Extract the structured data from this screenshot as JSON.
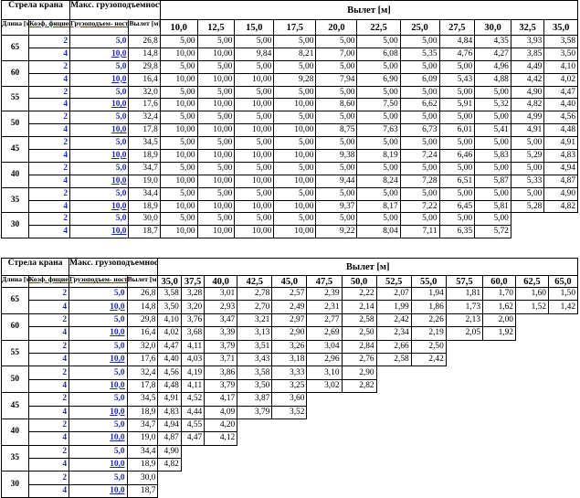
{
  "table1": {
    "header": {
      "boom": "Стрела крана",
      "max_load": "Макс. грузоподъемность",
      "reach_title": "Вылет [м]",
      "length": "Длина [м]",
      "coef": "Коэф. фициент",
      "load_cap": "Грузоподъем- ность [т]",
      "reach_col": "Вылет [м]",
      "reach_values": [
        "10,0",
        "12,5",
        "15,0",
        "17,5",
        "20,0",
        "22,5",
        "25,0",
        "27,5",
        "30,0",
        "32,5",
        "35,0"
      ]
    },
    "groups": [
      {
        "length": "65",
        "rows": [
          {
            "coef": "2",
            "load": "5,0",
            "reach": "26,8",
            "vals": [
              "5,00",
              "5,00",
              "5,00",
              "5,00",
              "5,00",
              "5,00",
              "5,00",
              "4,84",
              "4,35",
              "3,93",
              "3,58"
            ]
          },
          {
            "coef": "4",
            "load": "10,0",
            "reach": "14,8",
            "vals": [
              "10,00",
              "10,00",
              "9,84",
              "8,21",
              "7,00",
              "6,08",
              "5,35",
              "4,76",
              "4,27",
              "3,85",
              "3,50"
            ]
          }
        ]
      },
      {
        "length": "60",
        "rows": [
          {
            "coef": "2",
            "load": "5,0",
            "reach": "29,8",
            "vals": [
              "5,00",
              "5,00",
              "5,00",
              "5,00",
              "5,00",
              "5,00",
              "5,00",
              "5,00",
              "4,96",
              "4,49",
              "4,10"
            ]
          },
          {
            "coef": "4",
            "load": "10,0",
            "reach": "16,4",
            "vals": [
              "10,00",
              "10,00",
              "10,00",
              "9,28",
              "7,94",
              "6,90",
              "6,09",
              "5,43",
              "4,88",
              "4,42",
              "4,02"
            ]
          }
        ]
      },
      {
        "length": "55",
        "rows": [
          {
            "coef": "2",
            "load": "5,0",
            "reach": "32,0",
            "vals": [
              "5,00",
              "5,00",
              "5,00",
              "5,00",
              "5,00",
              "5,00",
              "5,00",
              "5,00",
              "5,00",
              "4,90",
              "4,47"
            ]
          },
          {
            "coef": "4",
            "load": "10,0",
            "reach": "17,6",
            "vals": [
              "10,00",
              "10,00",
              "10,00",
              "10,00",
              "8,60",
              "7,50",
              "6,62",
              "5,91",
              "5,32",
              "4,82",
              "4,40"
            ]
          }
        ]
      },
      {
        "length": "50",
        "rows": [
          {
            "coef": "2",
            "load": "5,0",
            "reach": "32,4",
            "vals": [
              "5,00",
              "5,00",
              "5,00",
              "5,00",
              "5,00",
              "5,00",
              "5,00",
              "5,00",
              "5,00",
              "4,99",
              "4,56"
            ]
          },
          {
            "coef": "4",
            "load": "10,0",
            "reach": "17,8",
            "vals": [
              "10,00",
              "10,00",
              "10,00",
              "10,00",
              "8,75",
              "7,63",
              "6,73",
              "6,01",
              "5,41",
              "4,91",
              "4,48"
            ]
          }
        ]
      },
      {
        "length": "45",
        "rows": [
          {
            "coef": "2",
            "load": "5,0",
            "reach": "34,5",
            "vals": [
              "5,00",
              "5,00",
              "5,00",
              "5,00",
              "5,00",
              "5,00",
              "5,00",
              "5,00",
              "5,00",
              "5,00",
              "4,91"
            ]
          },
          {
            "coef": "4",
            "load": "10,0",
            "reach": "18,9",
            "vals": [
              "10,00",
              "10,00",
              "10,00",
              "10,00",
              "9,38",
              "8,19",
              "7,24",
              "6,46",
              "5,83",
              "5,29",
              "4,83"
            ]
          }
        ]
      },
      {
        "length": "40",
        "rows": [
          {
            "coef": "2",
            "load": "5,0",
            "reach": "34,7",
            "vals": [
              "5,00",
              "5,00",
              "5,00",
              "5,00",
              "5,00",
              "5,00",
              "5,00",
              "5,00",
              "5,00",
              "5,00",
              "4,94"
            ]
          },
          {
            "coef": "4",
            "load": "10,0",
            "reach": "19,0",
            "vals": [
              "10,00",
              "10,00",
              "10,00",
              "10,00",
              "9,44",
              "8,24",
              "7,28",
              "6,51",
              "5,87",
              "5,33",
              "4,87"
            ]
          }
        ]
      },
      {
        "length": "35",
        "rows": [
          {
            "coef": "2",
            "load": "5,0",
            "reach": "34,4",
            "vals": [
              "5,00",
              "5,00",
              "5,00",
              "5,00",
              "5,00",
              "5,00",
              "5,00",
              "5,00",
              "5,00",
              "5,00",
              "4,90"
            ]
          },
          {
            "coef": "4",
            "load": "10,0",
            "reach": "18,9",
            "vals": [
              "10,00",
              "10,00",
              "10,00",
              "10,00",
              "9,37",
              "8,17",
              "7,22",
              "6,45",
              "5,81",
              "5,28",
              "4,82"
            ]
          }
        ]
      },
      {
        "length": "30",
        "rows": [
          {
            "coef": "2",
            "load": "5,0",
            "reach": "30,0",
            "vals": [
              "5,00",
              "5,00",
              "5,00",
              "5,00",
              "5,00",
              "5,00",
              "5,00",
              "5,00",
              "5,00",
              "",
              ""
            ]
          },
          {
            "coef": "4",
            "load": "10,0",
            "reach": "18,7",
            "vals": [
              "10,00",
              "10,00",
              "10,00",
              "10,00",
              "9,22",
              "8,04",
              "7,11",
              "6,35",
              "5,72",
              "",
              ""
            ]
          }
        ]
      }
    ]
  },
  "table2": {
    "header": {
      "boom": "Стрела крана",
      "max_load": "Макс. грузоподъемность",
      "reach_title": "Вылет [м]",
      "length": "Длина [м]",
      "coef": "Коэф. фициент",
      "load_cap": "Грузоподъем- ность [т]",
      "reach_col": "Вылет [м]",
      "reach_values": [
        "35,0",
        "37,5",
        "40,0",
        "42,5",
        "45,0",
        "47,5",
        "50,0",
        "52,5",
        "55,0",
        "57,5",
        "60,0",
        "62,5",
        "65,0"
      ]
    },
    "groups": [
      {
        "length": "65",
        "rows": [
          {
            "coef": "2",
            "load": "5,0",
            "reach": "26,8",
            "vals": [
              "3,58",
              "3,28",
              "3,01",
              "2,78",
              "2,57",
              "2,39",
              "2,22",
              "2,07",
              "1,94",
              "1,81",
              "1,70",
              "1,60",
              "1,50"
            ]
          },
          {
            "coef": "4",
            "load": "10,0",
            "reach": "14,8",
            "vals": [
              "3,50",
              "3,20",
              "2,93",
              "2,70",
              "2,49",
              "2,31",
              "2,14",
              "1,99",
              "1,86",
              "1,73",
              "1,62",
              "1,52",
              "1,42"
            ]
          }
        ]
      },
      {
        "length": "60",
        "rows": [
          {
            "coef": "2",
            "load": "5,0",
            "reach": "29,8",
            "vals": [
              "4,10",
              "3,76",
              "3,47",
              "3,21",
              "2,97",
              "2,77",
              "2,58",
              "2,42",
              "2,26",
              "2,13",
              "2,00",
              "",
              ""
            ]
          },
          {
            "coef": "4",
            "load": "10,0",
            "reach": "16,4",
            "vals": [
              "4,02",
              "3,68",
              "3,39",
              "3,13",
              "2,90",
              "2,69",
              "2,50",
              "2,34",
              "2,19",
              "2,05",
              "1,92",
              "",
              ""
            ]
          }
        ]
      },
      {
        "length": "55",
        "rows": [
          {
            "coef": "2",
            "load": "5,0",
            "reach": "32,0",
            "vals": [
              "4,47",
              "4,11",
              "3,79",
              "3,51",
              "3,26",
              "3,04",
              "2,84",
              "2,66",
              "2,50",
              "",
              "",
              "",
              ""
            ]
          },
          {
            "coef": "4",
            "load": "10,0",
            "reach": "17,6",
            "vals": [
              "4,40",
              "4,03",
              "3,71",
              "3,43",
              "3,18",
              "2,96",
              "2,76",
              "2,58",
              "2,42",
              "",
              "",
              "",
              ""
            ]
          }
        ]
      },
      {
        "length": "50",
        "rows": [
          {
            "coef": "2",
            "load": "5,0",
            "reach": "32,4",
            "vals": [
              "4,56",
              "4,19",
              "3,86",
              "3,58",
              "3,33",
              "3,10",
              "2,90",
              "",
              "",
              "",
              "",
              "",
              ""
            ]
          },
          {
            "coef": "4",
            "load": "10,0",
            "reach": "17,8",
            "vals": [
              "4,48",
              "4,11",
              "3,79",
              "3,50",
              "3,25",
              "3,02",
              "2,82",
              "",
              "",
              "",
              "",
              "",
              ""
            ]
          }
        ]
      },
      {
        "length": "45",
        "rows": [
          {
            "coef": "2",
            "load": "5,0",
            "reach": "34,5",
            "vals": [
              "4,91",
              "4,52",
              "4,17",
              "3,87",
              "3,60",
              "",
              "",
              "",
              "",
              "",
              "",
              "",
              ""
            ]
          },
          {
            "coef": "4",
            "load": "10,0",
            "reach": "18,9",
            "vals": [
              "4,83",
              "4,44",
              "4,09",
              "3,79",
              "3,52",
              "",
              "",
              "",
              "",
              "",
              "",
              "",
              ""
            ]
          }
        ]
      },
      {
        "length": "40",
        "rows": [
          {
            "coef": "2",
            "load": "5,0",
            "reach": "34,7",
            "vals": [
              "4,94",
              "4,55",
              "4,20",
              "",
              "",
              "",
              "",
              "",
              "",
              "",
              "",
              "",
              ""
            ]
          },
          {
            "coef": "4",
            "load": "10,0",
            "reach": "19,0",
            "vals": [
              "4,87",
              "4,47",
              "4,12",
              "",
              "",
              "",
              "",
              "",
              "",
              "",
              "",
              "",
              ""
            ]
          }
        ]
      },
      {
        "length": "35",
        "rows": [
          {
            "coef": "2",
            "load": "5,0",
            "reach": "34,4",
            "vals": [
              "4,90",
              "",
              "",
              "",
              "",
              "",
              "",
              "",
              "",
              "",
              "",
              "",
              ""
            ]
          },
          {
            "coef": "4",
            "load": "10,0",
            "reach": "18,9",
            "vals": [
              "4,82",
              "",
              "",
              "",
              "",
              "",
              "",
              "",
              "",
              "",
              "",
              "",
              ""
            ]
          }
        ]
      },
      {
        "length": "30",
        "rows": [
          {
            "coef": "2",
            "load": "5,0",
            "reach": "30,0",
            "vals": [
              "",
              "",
              "",
              "",
              "",
              "",
              "",
              "",
              "",
              "",
              "",
              "",
              ""
            ]
          },
          {
            "coef": "4",
            "load": "10,0",
            "reach": "18,7",
            "vals": [
              "",
              "",
              "",
              "",
              "",
              "",
              "",
              "",
              "",
              "",
              "",
              "",
              ""
            ]
          }
        ]
      }
    ]
  }
}
